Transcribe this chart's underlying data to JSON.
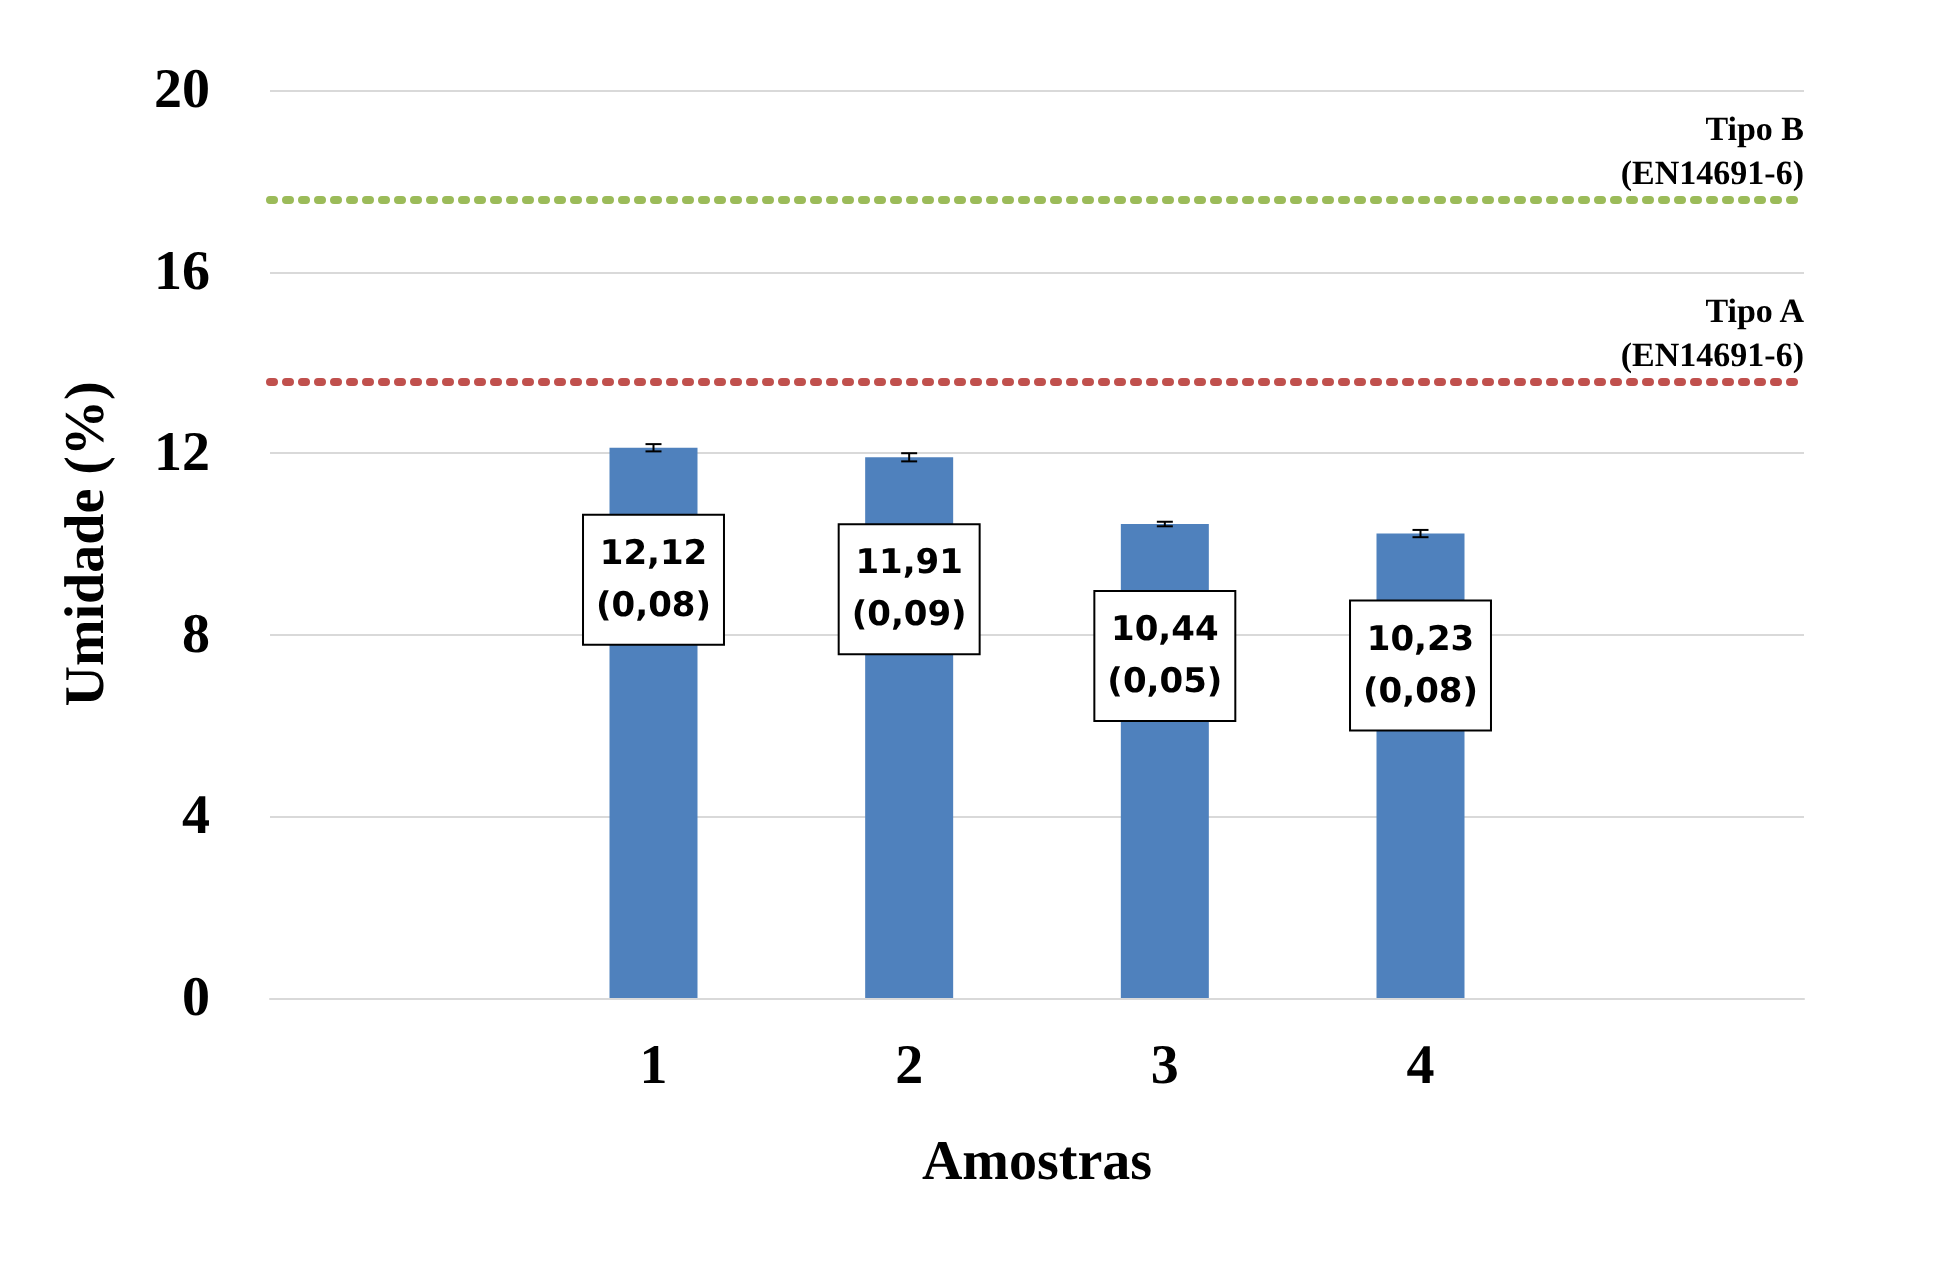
{
  "chart_data": {
    "type": "bar",
    "categories": [
      null,
      "1",
      "2",
      "3",
      "4",
      null
    ],
    "values": [
      null,
      12.12,
      11.91,
      10.44,
      10.23,
      null
    ],
    "errors": [
      null,
      0.08,
      0.09,
      0.05,
      0.08,
      null
    ],
    "value_labels": [
      null,
      "12,12\n(0,08)",
      "11,91\n(0,09)",
      "10,44\n(0,05)",
      "10,23\n(0,08)",
      null
    ],
    "color": "#4f81bd",
    "xlabel": "Amostras",
    "ylabel": "Umidade (%)",
    "ylim": [
      0,
      20
    ],
    "yticks": [
      0,
      4,
      8,
      12,
      16,
      20
    ],
    "grid": "y",
    "ref_lines": [
      {
        "axis": "y",
        "value": 17.6,
        "label": "Tipo B\n(EN14691-6)",
        "color": "#9bbb59",
        "line_style": "dotted"
      },
      {
        "axis": "y",
        "value": 13.6,
        "label": "Tipo A\n(EN14691-6)",
        "color": "#c0504d",
        "line_style": "dotted"
      }
    ]
  }
}
